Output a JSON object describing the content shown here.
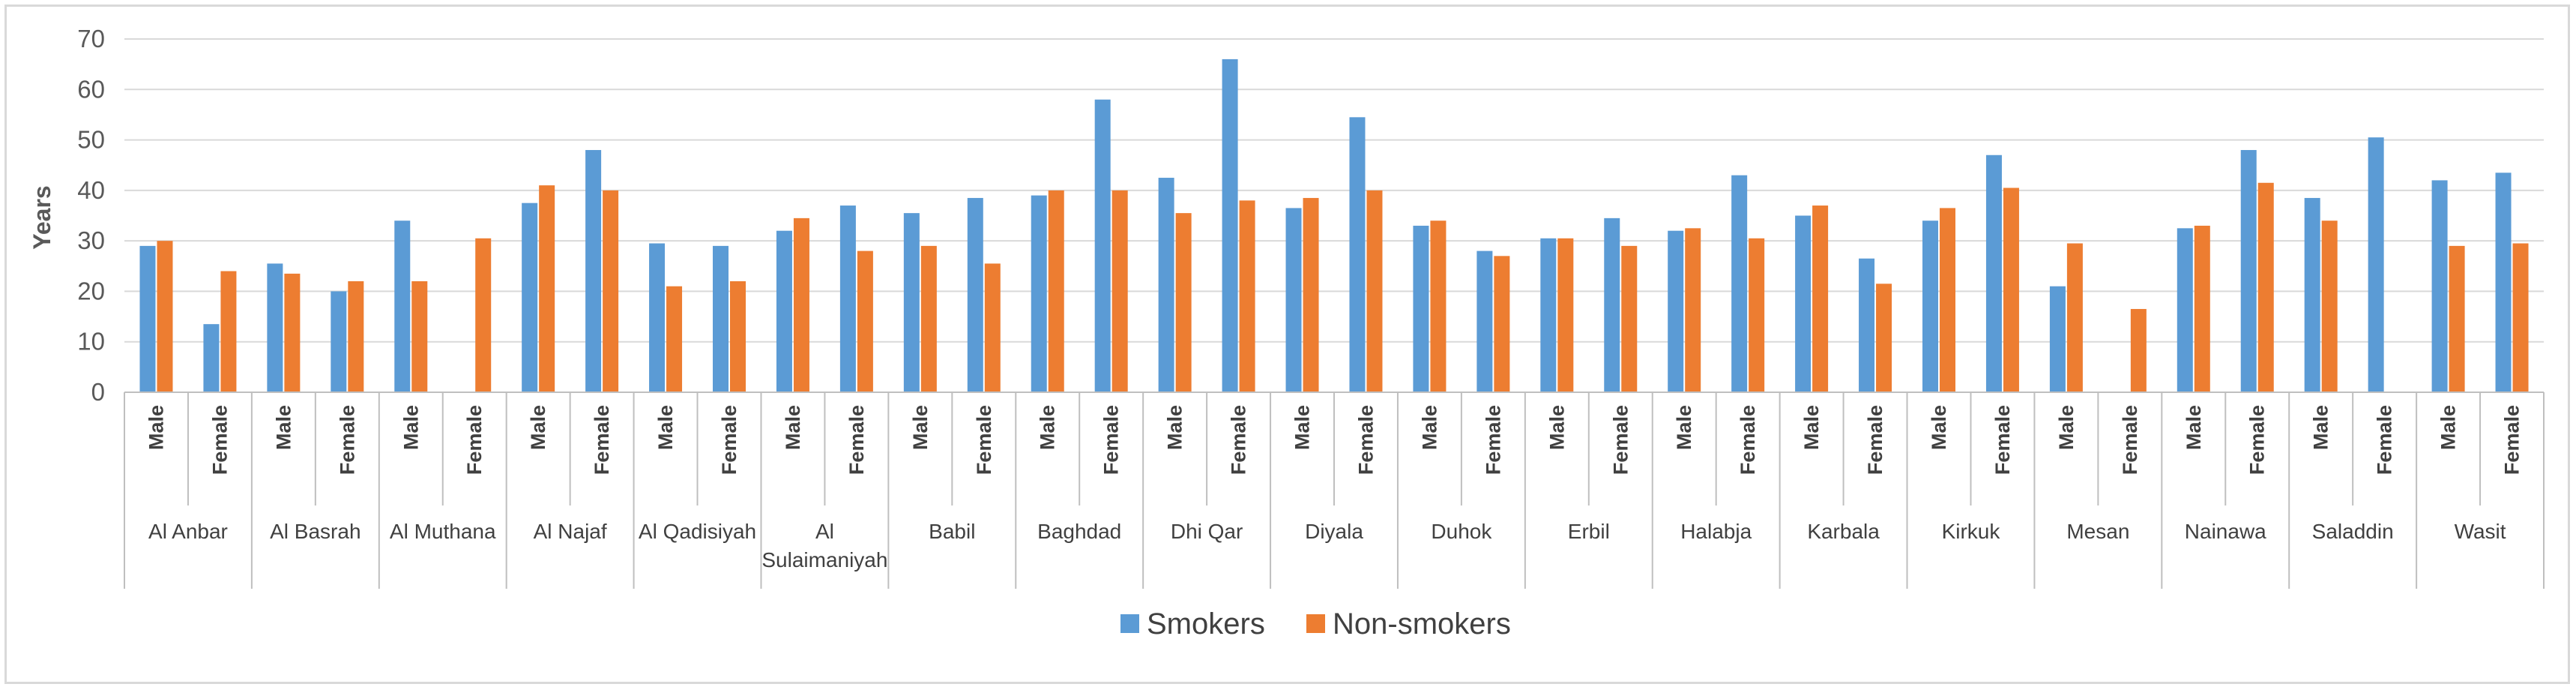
{
  "chart_data": {
    "type": "bar",
    "title": "",
    "ylabel": "Years",
    "ylim": [
      0,
      70
    ],
    "yticks": [
      0,
      10,
      20,
      30,
      40,
      50,
      60,
      70
    ],
    "grid": true,
    "legend_position": "bottom",
    "sex_labels": [
      "Male",
      "Female"
    ],
    "governorates": [
      "Al Anbar",
      "Al Basrah",
      "Al Muthana",
      "Al Najaf",
      "Al Qadisiyah",
      "Al Sulaimaniyah",
      "Babil",
      "Baghdad",
      "Dhi Qar",
      "Diyala",
      "Duhok",
      "Erbil",
      "Halabja",
      "Karbala",
      "Kirkuk",
      "Mesan",
      "Nainawa",
      "Saladdin",
      "Wasit"
    ],
    "series": [
      {
        "name": "Smokers",
        "color": "#5b9bd5",
        "values": [
          29,
          13.5,
          25.5,
          20,
          34,
          null,
          37.5,
          48,
          29.5,
          29,
          32,
          37,
          35.5,
          38.5,
          39,
          58,
          42.5,
          66,
          36.5,
          54.5,
          33,
          28,
          30.5,
          34.5,
          32,
          43,
          35,
          26.5,
          34,
          47,
          21,
          null,
          32.5,
          48,
          38.5,
          50.5,
          42,
          43.5
        ]
      },
      {
        "name": "Non-smokers",
        "color": "#ed7d31",
        "values": [
          30,
          24,
          23.5,
          22,
          22,
          30.5,
          41,
          40,
          21,
          22,
          34.5,
          28,
          29,
          25.5,
          40,
          40,
          35.5,
          38,
          38.5,
          40,
          34,
          27,
          30.5,
          29,
          32.5,
          30.5,
          37,
          21.5,
          36.5,
          40.5,
          29.5,
          16.5,
          33,
          41.5,
          34,
          null,
          29,
          29.5
        ]
      }
    ]
  }
}
